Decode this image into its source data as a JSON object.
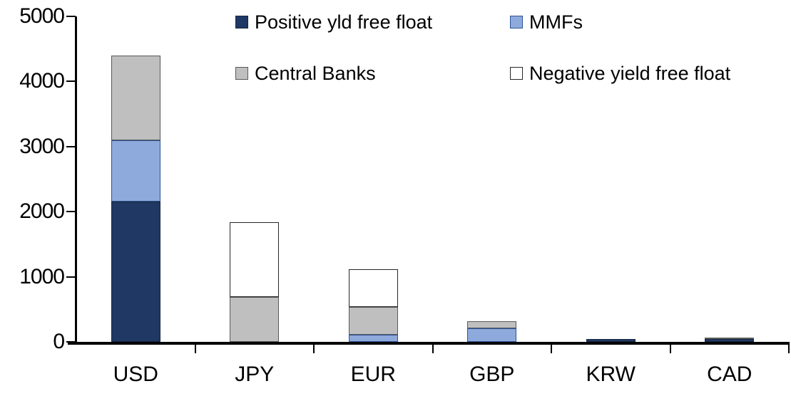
{
  "chart_data": {
    "type": "bar",
    "stacked": true,
    "title": "",
    "xlabel": "",
    "ylabel": "",
    "categories": [
      "USD",
      "JPY",
      "EUR",
      "GBP",
      "KRW",
      "CAD"
    ],
    "series": [
      {
        "name": "Positive yld free float",
        "color": "#1F3864",
        "border": "#17263F",
        "values": [
          2150,
          0,
          0,
          0,
          45,
          40
        ]
      },
      {
        "name": "MMFs",
        "color": "#8EA9DB",
        "border": "#2F5597",
        "values": [
          950,
          0,
          110,
          210,
          0,
          0
        ]
      },
      {
        "name": "Central Banks",
        "color": "#BFBFBF",
        "border": "#595959",
        "values": [
          1300,
          690,
          430,
          110,
          0,
          30
        ]
      },
      {
        "name": "Negative yield free float",
        "color": "#FFFFFF",
        "border": "#262626",
        "values": [
          0,
          1150,
          580,
          0,
          0,
          0
        ]
      }
    ],
    "ylim": [
      0,
      5000
    ],
    "yticks": [
      0,
      1000,
      2000,
      3000,
      4000,
      5000
    ],
    "ytick_labels": [
      "0",
      "1000",
      "2000",
      "3000",
      "4000",
      "5000"
    ],
    "grid": false,
    "legend_position": "top",
    "legend_layout": [
      {
        "series_index": 0,
        "col": 0,
        "row": 0
      },
      {
        "series_index": 1,
        "col": 1,
        "row": 0
      },
      {
        "series_index": 2,
        "col": 0,
        "row": 1
      },
      {
        "series_index": 3,
        "col": 1,
        "row": 1
      }
    ],
    "axis_color": "#000000",
    "text_color": "#000000"
  }
}
